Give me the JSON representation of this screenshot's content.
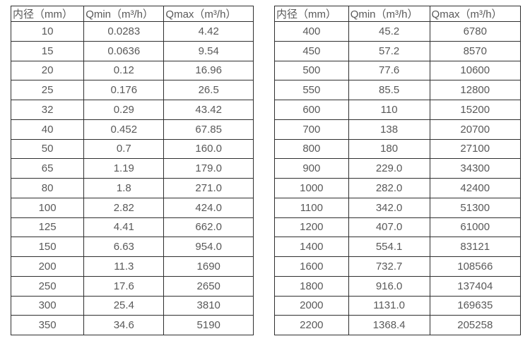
{
  "colors": {
    "background": "#ffffff",
    "table_border": "#2f2f2f",
    "text": "#595959"
  },
  "tables": [
    {
      "name": "flow-table-small-diameters",
      "headers": [
        "内径（mm）",
        "Qmin（m³/h）",
        "Qmax（m³/h）"
      ],
      "rows": [
        [
          "10",
          "0.0283",
          "4.42"
        ],
        [
          "15",
          "0.0636",
          "9.54"
        ],
        [
          "20",
          "0.12",
          "16.96"
        ],
        [
          "25",
          "0.176",
          "26.5"
        ],
        [
          "32",
          "0.29",
          "43.42"
        ],
        [
          "40",
          "0.452",
          "67.85"
        ],
        [
          "50",
          "0.7",
          "160.0"
        ],
        [
          "65",
          "1.19",
          "179.0"
        ],
        [
          "80",
          "1.8",
          "271.0"
        ],
        [
          "100",
          "2.82",
          "424.0"
        ],
        [
          "125",
          "4.41",
          "662.0"
        ],
        [
          "150",
          "6.63",
          "954.0"
        ],
        [
          "200",
          "11.3",
          "1690"
        ],
        [
          "250",
          "17.6",
          "2650"
        ],
        [
          "300",
          "25.4",
          "3810"
        ],
        [
          "350",
          "34.6",
          "5190"
        ]
      ]
    },
    {
      "name": "flow-table-large-diameters",
      "headers": [
        "内径（mm）",
        "Qmin（m³/h）",
        "Qmax（m³/h）"
      ],
      "rows": [
        [
          "400",
          "45.2",
          "6780"
        ],
        [
          "450",
          "57.2",
          "8570"
        ],
        [
          "500",
          "77.6",
          "10600"
        ],
        [
          "550",
          "85.5",
          "12800"
        ],
        [
          "600",
          "110",
          "15200"
        ],
        [
          "700",
          "138",
          "20700"
        ],
        [
          "800",
          "180",
          "27100"
        ],
        [
          "900",
          "229.0",
          "34300"
        ],
        [
          "1000",
          "282.0",
          "42400"
        ],
        [
          "1100",
          "342.0",
          "51300"
        ],
        [
          "1200",
          "407.0",
          "61000"
        ],
        [
          "1400",
          "554.1",
          "83121"
        ],
        [
          "1600",
          "732.7",
          "108566"
        ],
        [
          "1800",
          "916.0",
          "137404"
        ],
        [
          "2000",
          "1131.0",
          "169635"
        ],
        [
          "2200",
          "1368.4",
          "205258"
        ]
      ]
    }
  ]
}
